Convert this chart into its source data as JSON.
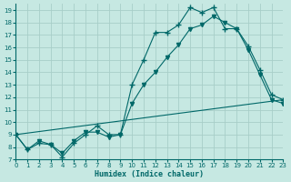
{
  "xlabel": "Humidex (Indice chaleur)",
  "background_color": "#c6e8e2",
  "grid_color": "#a8cec8",
  "line_color": "#006868",
  "xlim": [
    0,
    23
  ],
  "ylim": [
    7,
    19.5
  ],
  "x_ticks": [
    0,
    1,
    2,
    3,
    4,
    5,
    6,
    7,
    8,
    9,
    10,
    11,
    12,
    13,
    14,
    15,
    16,
    17,
    18,
    19,
    20,
    21,
    22,
    23
  ],
  "y_ticks": [
    7,
    8,
    9,
    10,
    11,
    12,
    13,
    14,
    15,
    16,
    17,
    18,
    19
  ],
  "series1_x": [
    0,
    1,
    2,
    3,
    4,
    5,
    6,
    7,
    8,
    9,
    10,
    11,
    12,
    13,
    14,
    15,
    16,
    17,
    18,
    19,
    20,
    21,
    22,
    23
  ],
  "series1_y": [
    9.0,
    7.8,
    8.3,
    8.2,
    7.2,
    8.3,
    9.0,
    9.7,
    9.0,
    9.0,
    13.0,
    15.0,
    17.2,
    17.2,
    17.8,
    19.2,
    18.8,
    19.2,
    17.5,
    17.5,
    16.1,
    14.2,
    12.2,
    11.8
  ],
  "series2_x": [
    0,
    1,
    2,
    3,
    4,
    5,
    6,
    7,
    8,
    9,
    10,
    11,
    12,
    13,
    14,
    15,
    16,
    17,
    18,
    19,
    20,
    21,
    22,
    23
  ],
  "series2_y": [
    9.0,
    7.8,
    8.5,
    8.2,
    7.5,
    8.5,
    9.2,
    9.2,
    8.8,
    9.0,
    11.5,
    13.0,
    14.0,
    15.2,
    16.2,
    17.5,
    17.8,
    18.5,
    18.0,
    17.5,
    15.8,
    13.8,
    11.8,
    11.5
  ],
  "series3_x": [
    0,
    23
  ],
  "series3_y": [
    9.0,
    11.8
  ],
  "xlabel_fontsize": 6,
  "tick_fontsize": 5,
  "linewidth": 0.8,
  "markersize": 2.0
}
